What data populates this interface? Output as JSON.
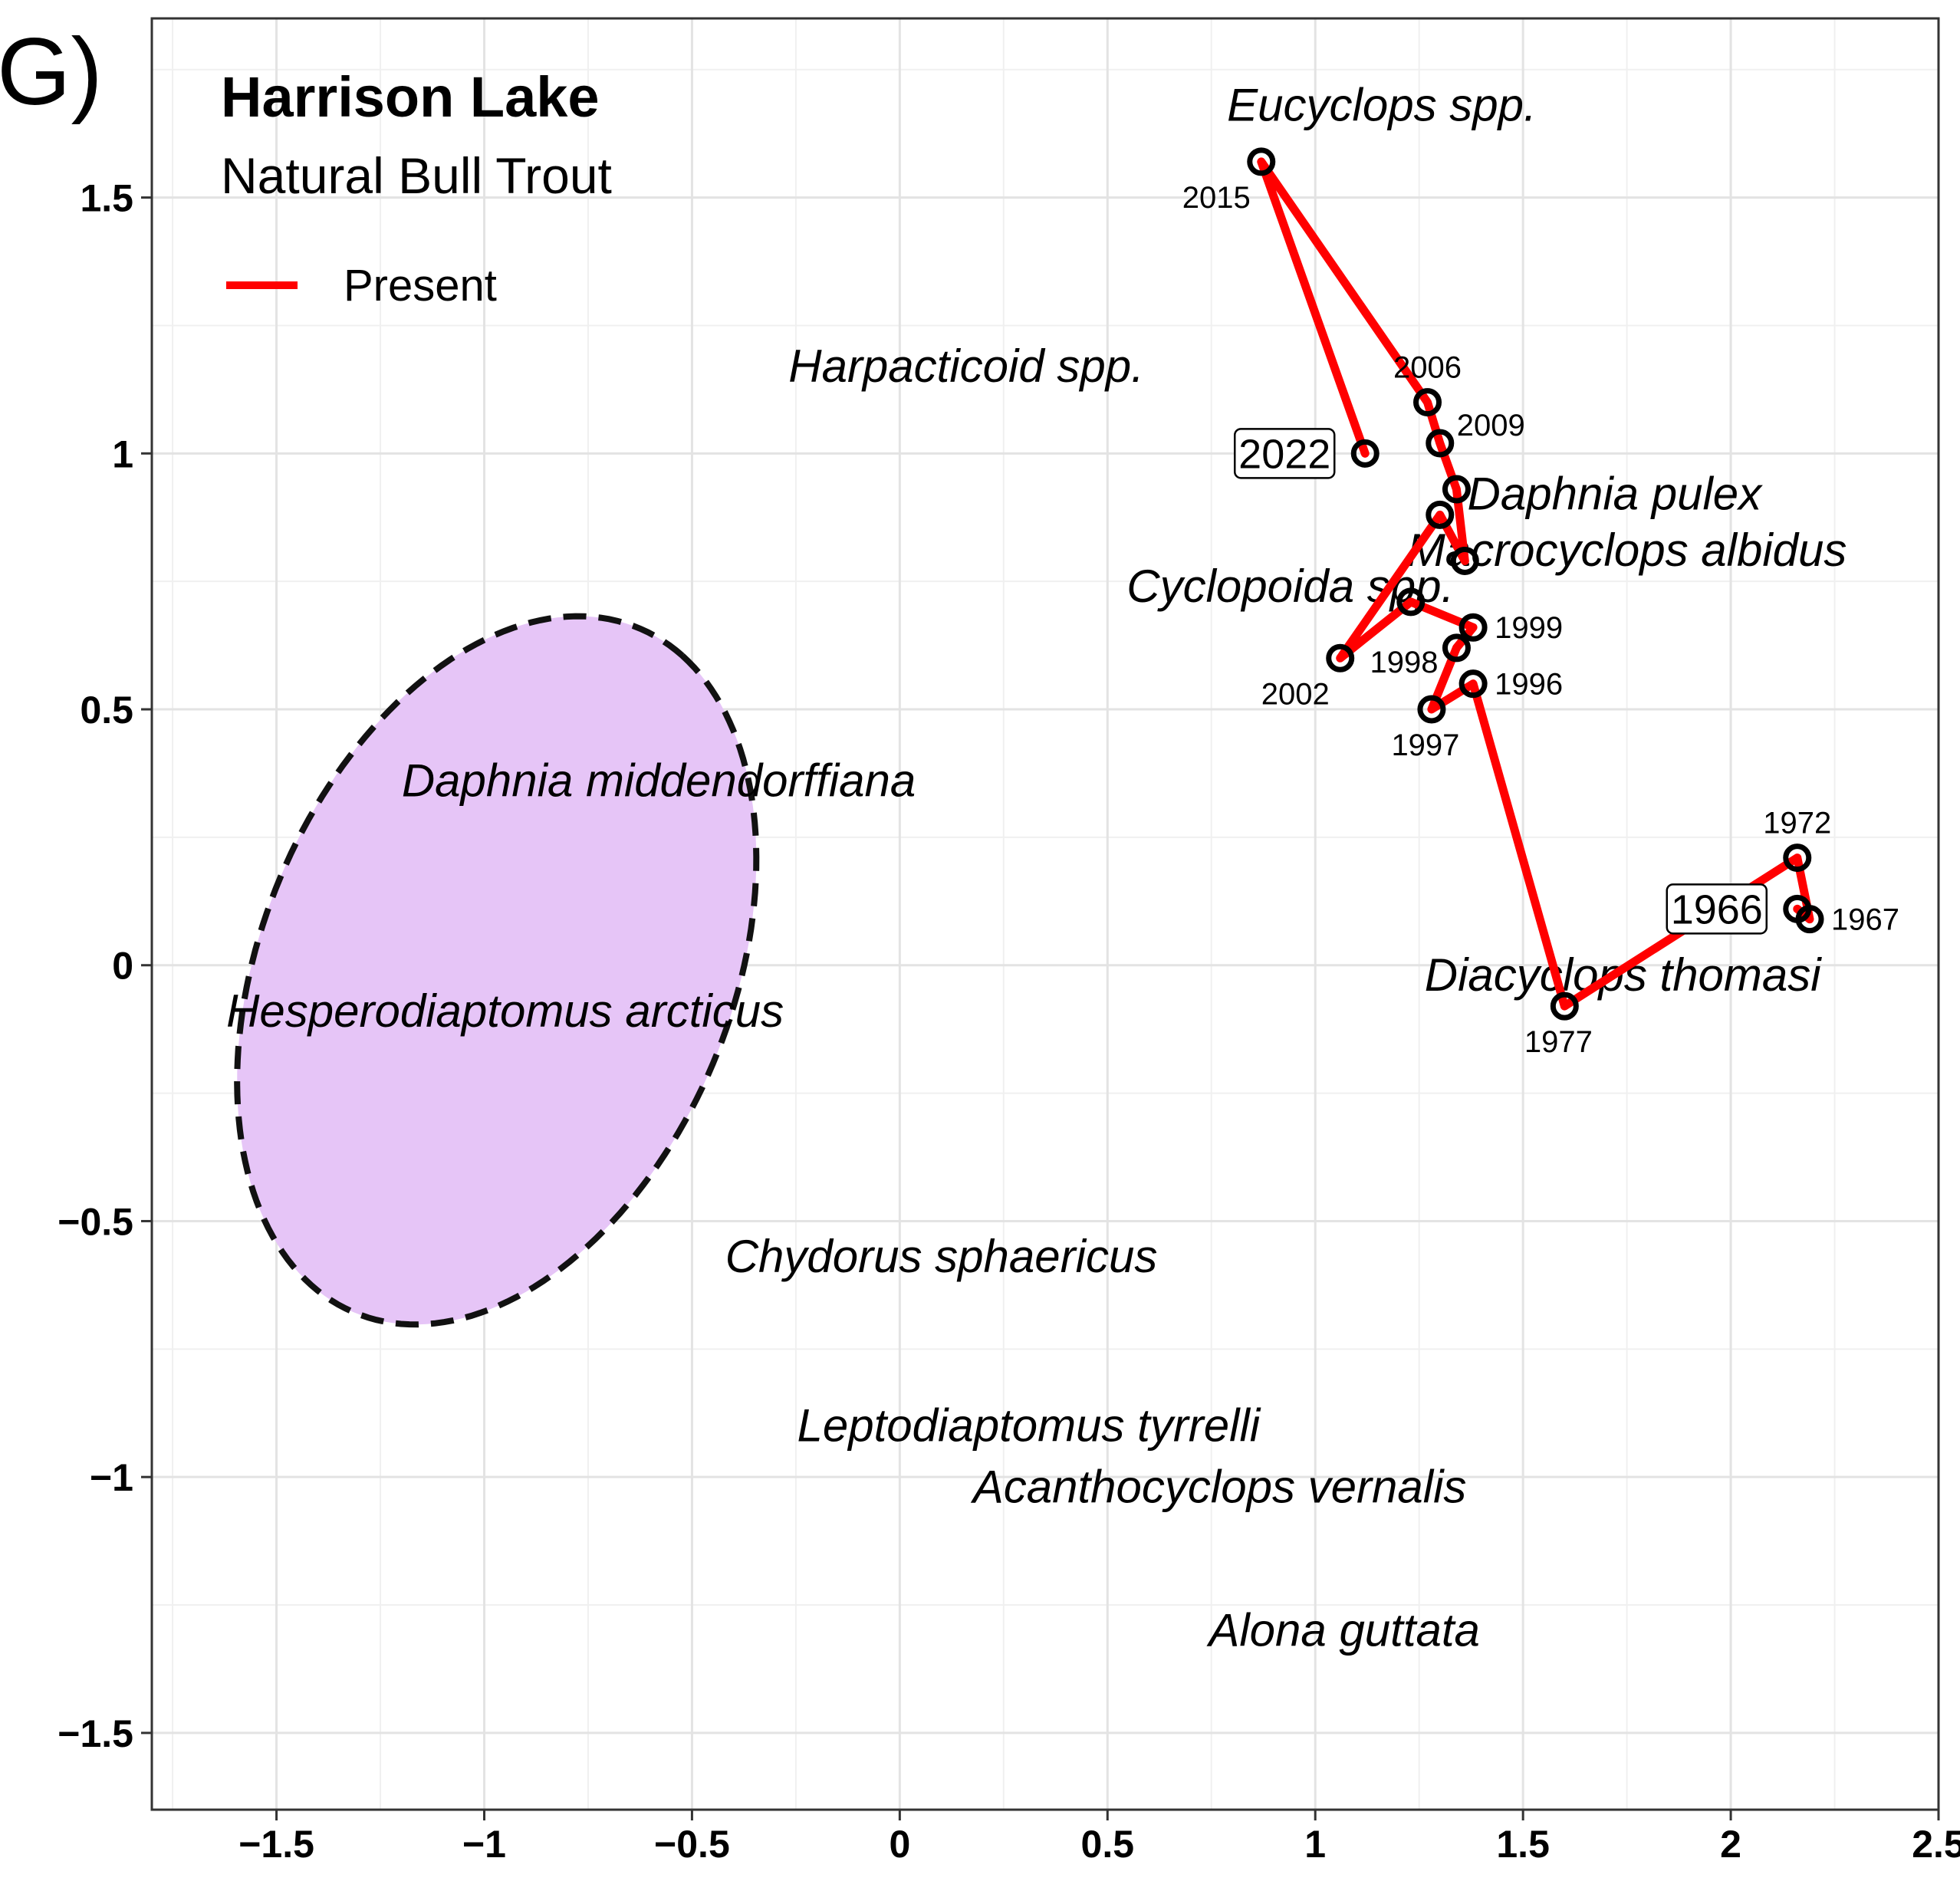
{
  "chart_data": {
    "type": "scatter",
    "panel_label": "G)",
    "title": "Harrison Lake",
    "subtitle": "Natural Bull Trout",
    "legend": {
      "placement": "top-left",
      "entries": [
        {
          "label": "Present",
          "color": "#ff0000"
        }
      ]
    },
    "xlim": [
      -1.8,
      2.5
    ],
    "ylim": [
      -1.65,
      1.85
    ],
    "x_ticks": [
      {
        "value": -1.5,
        "label": "−1.5"
      },
      {
        "value": -1.0,
        "label": "−1"
      },
      {
        "value": -0.5,
        "label": "−0.5"
      },
      {
        "value": 0.0,
        "label": "0"
      },
      {
        "value": 0.5,
        "label": "0.5"
      },
      {
        "value": 1.0,
        "label": "1"
      },
      {
        "value": 1.5,
        "label": "1.5"
      },
      {
        "value": 2.0,
        "label": "2"
      },
      {
        "value": 2.5,
        "label": "2.5"
      }
    ],
    "y_ticks": [
      {
        "value": -1.5,
        "label": "−1.5"
      },
      {
        "value": -1.0,
        "label": "−1"
      },
      {
        "value": -0.5,
        "label": "−0.5"
      },
      {
        "value": 0.0,
        "label": "0"
      },
      {
        "value": 0.5,
        "label": "0.5"
      },
      {
        "value": 1.0,
        "label": "1"
      },
      {
        "value": 1.5,
        "label": "1.5"
      }
    ],
    "grid": true,
    "series": [
      {
        "name": "Present",
        "color": "#ff0000",
        "points": [
          {
            "year": "1966",
            "x": 2.16,
            "y": 0.11,
            "boxed": true,
            "label_side": "boxleft"
          },
          {
            "year": "1967",
            "x": 2.19,
            "y": 0.09,
            "label_side": "right"
          },
          {
            "year": "1972",
            "x": 2.16,
            "y": 0.21,
            "label_side": "above"
          },
          {
            "year": "1977",
            "x": 1.6,
            "y": -0.08,
            "label_side": "below"
          },
          {
            "year": "1996",
            "x": 1.38,
            "y": 0.55,
            "label_side": "right"
          },
          {
            "year": "1997",
            "x": 1.28,
            "y": 0.5,
            "label_side": "below"
          },
          {
            "year": "1998",
            "x": 1.34,
            "y": 0.62,
            "label_side": "leftbelow"
          },
          {
            "year": "1999",
            "x": 1.38,
            "y": 0.66,
            "label_side": "right"
          },
          {
            "year": "",
            "x": 1.23,
            "y": 0.71
          },
          {
            "year": "2002",
            "x": 1.06,
            "y": 0.6,
            "label_side": "belowleft"
          },
          {
            "year": "",
            "x": 1.3,
            "y": 0.88
          },
          {
            "year": "",
            "x": 1.36,
            "y": 0.79
          },
          {
            "year": "",
            "x": 1.34,
            "y": 0.93
          },
          {
            "year": "2009",
            "x": 1.3,
            "y": 1.02,
            "label_side": "rightabove"
          },
          {
            "year": "2006",
            "x": 1.27,
            "y": 1.1,
            "label_side": "above"
          },
          {
            "year": "2015",
            "x": 0.87,
            "y": 1.57,
            "label_side": "belowleft"
          },
          {
            "year": "2022",
            "x": 1.12,
            "y": 1.0,
            "boxed": true,
            "label_side": "boxleft"
          }
        ]
      }
    ],
    "species_labels": [
      {
        "text": "Eucyclops spp.",
        "x": 1.16,
        "y": 1.68
      },
      {
        "text": "Harpacticoid spp.",
        "x": 0.16,
        "y": 1.17
      },
      {
        "text": "Daphnia pulex",
        "x": 1.72,
        "y": 0.92
      },
      {
        "text": "Macrocyclops albidus",
        "x": 1.75,
        "y": 0.81
      },
      {
        "text": "Cyclopoida spp.",
        "x": 0.94,
        "y": 0.74
      },
      {
        "text": "Daphnia middendorffiana",
        "x": -0.58,
        "y": 0.36
      },
      {
        "text": "Hesperodiaptomus arcticus",
        "x": -0.95,
        "y": -0.09
      },
      {
        "text": "Diacyclops thomasi",
        "x": 1.74,
        "y": -0.02
      },
      {
        "text": "Chydorus sphaericus",
        "x": 0.1,
        "y": -0.57
      },
      {
        "text": "Leptodiaptomus tyrrelli",
        "x": 0.31,
        "y": -0.9
      },
      {
        "text": "Acanthocyclops vernalis",
        "x": 0.77,
        "y": -1.02
      },
      {
        "text": "Alona guttata",
        "x": 1.07,
        "y": -1.3
      }
    ],
    "ellipse": {
      "center_x": -0.97,
      "center_y": -0.01,
      "semi_major": 0.76,
      "semi_minor": 0.54,
      "angle_deg": 54,
      "fill": "#e6c5f7",
      "stroke": "#111111",
      "dashed": true
    }
  }
}
